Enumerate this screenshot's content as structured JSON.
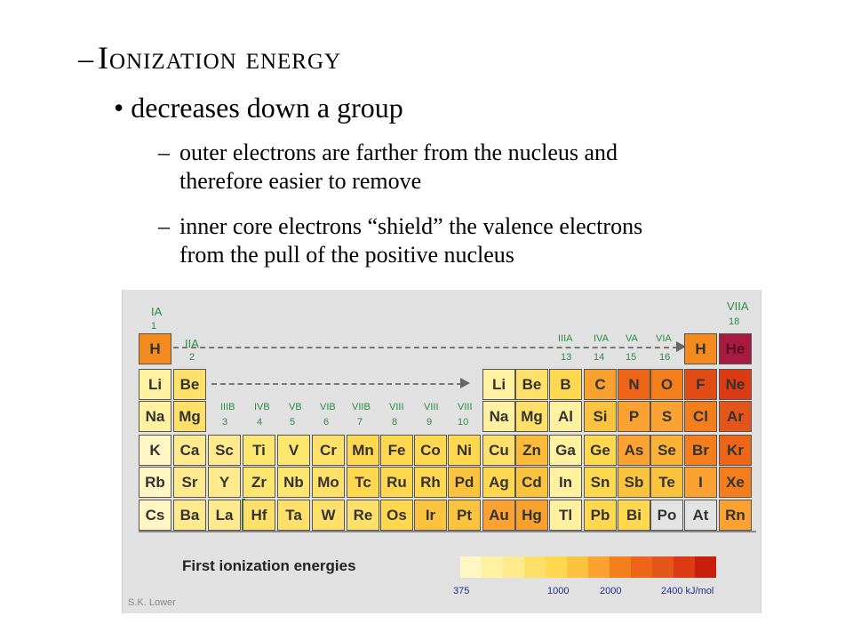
{
  "slide": {
    "title_dash": "–",
    "title": "Ionization energy",
    "bullet_mark": "•",
    "bullet": "decreases down a group",
    "subs": [
      {
        "dash": "–",
        "line1": "outer electrons are farther from the nucleus and",
        "line2": "therefore easier to remove"
      },
      {
        "dash": "–",
        "line1": "inner core electrons “shield” the valence electrons",
        "line2": "from the pull of the positive nucleus"
      }
    ]
  },
  "figure": {
    "group_labels": {
      "IA": "IA",
      "g1": "1",
      "IIA": "IIA",
      "g2": "2",
      "IIIB": "IIIB",
      "g3": "3",
      "IVB": "IVB",
      "g4": "4",
      "VB": "VB",
      "g5": "5",
      "VIB": "VIB",
      "g6": "6",
      "VIIB": "VIIB",
      "g7": "7",
      "VIII_a": "VIII",
      "g8": "8",
      "VIII_b": "VIII",
      "g9": "9",
      "VIII_c": "VIII",
      "g10": "10",
      "IIIA": "IIIA",
      "g13": "13",
      "IVA": "IVA",
      "g14": "14",
      "VA": "VA",
      "g15": "15",
      "VIA": "VIA",
      "g16": "16",
      "VIIA": "VIIA",
      "g18": "18"
    },
    "elements": [
      {
        "sym": "H",
        "color": "#f28a1e"
      },
      {
        "sym": "Li",
        "color": "#fff1a0"
      },
      {
        "sym": "Be",
        "color": "#ffe16a"
      },
      {
        "sym": "Na",
        "color": "#fff1a0"
      },
      {
        "sym": "Mg",
        "color": "#ffe16a"
      },
      {
        "sym": "K",
        "color": "#fff6c4"
      },
      {
        "sym": "Ca",
        "color": "#ffeb8e"
      },
      {
        "sym": "Sc",
        "color": "#ffeb8e"
      },
      {
        "sym": "Ti",
        "color": "#ffe66f"
      },
      {
        "sym": "V",
        "color": "#ffe66f"
      },
      {
        "sym": "Cr",
        "color": "#ffe16a"
      },
      {
        "sym": "Mn",
        "color": "#ffd84f"
      },
      {
        "sym": "Fe",
        "color": "#ffd84f"
      },
      {
        "sym": "Co",
        "color": "#ffd84f"
      },
      {
        "sym": "Ni",
        "color": "#ffd84f"
      },
      {
        "sym": "Cu",
        "color": "#ffe16a"
      },
      {
        "sym": "Zn",
        "color": "#fdbb39"
      },
      {
        "sym": "Ga",
        "color": "#fff1a0"
      },
      {
        "sym": "Ge",
        "color": "#ffd84f"
      },
      {
        "sym": "As",
        "color": "#fba233"
      },
      {
        "sym": "Se",
        "color": "#fbb236"
      },
      {
        "sym": "Br",
        "color": "#f47e1c"
      },
      {
        "sym": "Kr",
        "color": "#ee6517"
      },
      {
        "sym": "Rb",
        "color": "#fff6c4"
      },
      {
        "sym": "Sr",
        "color": "#ffeb8e"
      },
      {
        "sym": "Y",
        "color": "#ffeb8e"
      },
      {
        "sym": "Zr",
        "color": "#ffe66f"
      },
      {
        "sym": "Nb",
        "color": "#ffe66f"
      },
      {
        "sym": "Mo",
        "color": "#ffe16a"
      },
      {
        "sym": "Tc",
        "color": "#ffd84f"
      },
      {
        "sym": "Ru",
        "color": "#ffd84f"
      },
      {
        "sym": "Rh",
        "color": "#ffd84f"
      },
      {
        "sym": "Pd",
        "color": "#fcc43e"
      },
      {
        "sym": "Ag",
        "color": "#ffd84f"
      },
      {
        "sym": "Cd",
        "color": "#fcc43e"
      },
      {
        "sym": "In",
        "color": "#fff1a0"
      },
      {
        "sym": "Sn",
        "color": "#ffd84f"
      },
      {
        "sym": "Sb",
        "color": "#fcc43e"
      },
      {
        "sym": "Te",
        "color": "#fcc43e"
      },
      {
        "sym": "I",
        "color": "#fba233"
      },
      {
        "sym": "Xe",
        "color": "#f47e1c"
      },
      {
        "sym": "Cs",
        "color": "#fff6c4"
      },
      {
        "sym": "Ba",
        "color": "#ffeb8e"
      },
      {
        "sym": "La",
        "color": "#ffeb8e"
      },
      {
        "sym": "Hf",
        "color": "#ffe16a"
      },
      {
        "sym": "Ta",
        "color": "#ffe16a"
      },
      {
        "sym": "W",
        "color": "#ffe16a"
      },
      {
        "sym": "Re",
        "color": "#ffe16a"
      },
      {
        "sym": "Os",
        "color": "#ffd84f"
      },
      {
        "sym": "Ir",
        "color": "#fcc43e"
      },
      {
        "sym": "Pt",
        "color": "#fcc43e"
      },
      {
        "sym": "Au",
        "color": "#fba233"
      },
      {
        "sym": "Hg",
        "color": "#f9a12e"
      },
      {
        "sym": "Tl",
        "color": "#fff1a0"
      },
      {
        "sym": "Pb",
        "color": "#ffd84f"
      },
      {
        "sym": "Bi",
        "color": "#ffd84f"
      },
      {
        "sym": "Po",
        "color": "#e3e3e3"
      },
      {
        "sym": "At",
        "color": "#e3e3e3"
      },
      {
        "sym": "Rn",
        "color": "#fba233"
      },
      {
        "sym": "Li",
        "color": "#fff1a0"
      },
      {
        "sym": "Be",
        "color": "#ffe16a"
      },
      {
        "sym": "Na",
        "color": "#fff1a0"
      },
      {
        "sym": "Mg",
        "color": "#ffe16a"
      },
      {
        "sym": "H",
        "color": "#f28a1e"
      },
      {
        "sym": "He",
        "color": "#a81a3f"
      },
      {
        "sym": "B",
        "color": "#ffd84f"
      },
      {
        "sym": "C",
        "color": "#f9a12e"
      },
      {
        "sym": "N",
        "color": "#ee6517"
      },
      {
        "sym": "O",
        "color": "#f47e1c"
      },
      {
        "sym": "F",
        "color": "#e24b14"
      },
      {
        "sym": "Ne",
        "color": "#dc3a12"
      },
      {
        "sym": "Al",
        "color": "#fff1a0"
      },
      {
        "sym": "Si",
        "color": "#fcc43e"
      },
      {
        "sym": "P",
        "color": "#fba233"
      },
      {
        "sym": "S",
        "color": "#fba233"
      },
      {
        "sym": "Cl",
        "color": "#f47e1c"
      },
      {
        "sym": "Ar",
        "color": "#e4551a"
      }
    ],
    "legend_title": "First ionization energies",
    "scale_colors": [
      "#fff6c4",
      "#fff1a0",
      "#ffeb8e",
      "#ffe16a",
      "#ffd84f",
      "#fcc43e",
      "#fba233",
      "#f47e1c",
      "#ee6517",
      "#e4551a",
      "#dc3a12",
      "#c81e0e"
    ],
    "ticks": [
      "375",
      "1000",
      "2000",
      "2400 kJ/mol"
    ],
    "credit": "S.K. Lower"
  }
}
